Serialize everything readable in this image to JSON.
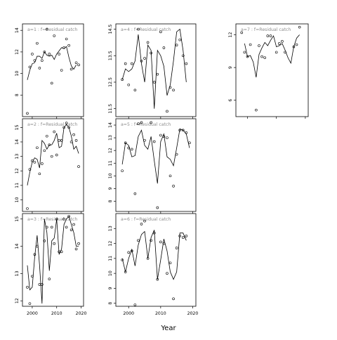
{
  "xlabel": "Year",
  "line_color": "#000000",
  "point_color": "#000000",
  "frame_color": "#000000",
  "title_color": "#8c8c8c",
  "panel_label_suffix": " : f=Residual catch",
  "x_ticks": [
    2000,
    2010,
    2020
  ],
  "xlim": [
    1996,
    2021
  ],
  "chart_data": [
    {
      "type": "line",
      "title": "a=1 : f=Residual catch",
      "ylim": [
        6.0,
        14.6
      ],
      "y_ticks": [
        8,
        10,
        12,
        14
      ],
      "x": [
        1998,
        1999,
        2000,
        2001,
        2002,
        2003,
        2004,
        2005,
        2006,
        2007,
        2008,
        2009,
        2010,
        2011,
        2012,
        2013,
        2014,
        2015,
        2016,
        2017,
        2018,
        2019
      ],
      "obs": [
        6.3,
        10.6,
        11.8,
        11.2,
        12.8,
        10.5,
        11.2,
        12.0,
        14.1,
        11.8,
        9.1,
        13.5,
        null,
        11.8,
        10.3,
        12.4,
        13.2,
        12.6,
        10.4,
        null,
        11.0,
        10.8
      ],
      "fit": [
        9.4,
        10.3,
        10.9,
        11.0,
        11.6,
        11.6,
        11.4,
        12.0,
        11.7,
        11.6,
        11.7,
        11.3,
        11.8,
        12.1,
        12.4,
        12.3,
        12.5,
        11.5,
        10.7,
        10.4,
        10.8,
        null
      ]
    },
    {
      "type": "line",
      "title": "a=4 : f=Residual catch",
      "ylim": [
        11.2,
        14.7
      ],
      "y_ticks": [
        11.5,
        12.5,
        13.5,
        14.5
      ],
      "x": [
        1998,
        1999,
        2000,
        2001,
        2002,
        2003,
        2004,
        2005,
        2006,
        2007,
        2008,
        2009,
        2010,
        2011,
        2012,
        2013,
        2014,
        2015,
        2016,
        2017,
        2018
      ],
      "obs": [
        12.6,
        13.2,
        12.4,
        13.2,
        12.2,
        14.5,
        13.3,
        13.4,
        14.0,
        13.6,
        12.5,
        12.8,
        14.4,
        13.8,
        11.4,
        12.3,
        12.2,
        13.9,
        14.1,
        13.5,
        13.2
      ],
      "fit": [
        12.6,
        13.0,
        12.9,
        13.0,
        13.3,
        14.3,
        13.2,
        12.5,
        13.9,
        13.7,
        11.5,
        13.7,
        13.5,
        13.1,
        12.0,
        12.4,
        13.3,
        14.4,
        14.5,
        13.7,
        12.5
      ]
    },
    {
      "type": "line",
      "title": "a=7 : f=Residual catch",
      "ylim": [
        4.5,
        13.0
      ],
      "y_ticks": [
        6,
        9,
        12
      ],
      "x": [
        1998,
        1999,
        2000,
        2001,
        2002,
        2003,
        2004,
        2005,
        2006,
        2007,
        2008,
        2009,
        2010,
        2011,
        2012,
        2013,
        2014,
        2015,
        2016,
        2017,
        2018,
        2019
      ],
      "obs": [
        12.2,
        10.4,
        10.0,
        11.1,
        null,
        5.1,
        11.0,
        10.0,
        9.9,
        11.9,
        11.9,
        null,
        10.4,
        11.2,
        11.4,
        10.4,
        null,
        null,
        10.9,
        11.1,
        12.7,
        null
      ],
      "fit": [
        null,
        11.2,
        10.0,
        10.1,
        9.5,
        8.1,
        10.2,
        10.8,
        11.3,
        11.0,
        11.5,
        11.9,
        10.9,
        11.0,
        11.2,
        10.6,
        9.9,
        9.4,
        10.9,
        11.7,
        12.0,
        null
      ]
    },
    {
      "type": "line",
      "title": "a=2 : f=Residual catch",
      "ylim": [
        9.2,
        15.6
      ],
      "y_ticks": [
        10,
        11,
        12,
        13,
        14,
        15
      ],
      "x": [
        1998,
        1999,
        2000,
        2001,
        2002,
        2003,
        2004,
        2005,
        2006,
        2007,
        2008,
        2009,
        2010,
        2011,
        2012,
        2013,
        2014,
        2015,
        2016,
        2017,
        2018,
        2019
      ],
      "obs": [
        9.4,
        12.1,
        12.7,
        12.6,
        13.6,
        11.8,
        12.5,
        13.4,
        14.4,
        13.8,
        13.0,
        14.7,
        13.1,
        14.1,
        14.1,
        15.0,
        15.3,
        15.0,
        14.0,
        14.5,
        14.1,
        12.3
      ],
      "fit": [
        11.0,
        11.9,
        12.6,
        12.9,
        12.8,
        12.2,
        14.1,
        13.9,
        13.5,
        13.8,
        13.8,
        14.1,
        14.6,
        13.6,
        13.7,
        15.0,
        15.2,
        15.0,
        14.4,
        13.5,
        13.7,
        13.2
      ]
    },
    {
      "type": "line",
      "title": "a=5 : f=Residual catch",
      "ylim": [
        7.2,
        14.5
      ],
      "y_ticks": [
        8,
        9,
        10,
        11,
        12,
        13,
        14
      ],
      "x": [
        1998,
        1999,
        2000,
        2001,
        2002,
        2003,
        2004,
        2005,
        2006,
        2007,
        2008,
        2009,
        2010,
        2011,
        2012,
        2013,
        2014,
        2015,
        2016,
        2017,
        2018,
        2019
      ],
      "obs": [
        10.4,
        12.6,
        12.2,
        12.1,
        8.6,
        14.1,
        14.2,
        12.8,
        null,
        14.2,
        12.7,
        7.5,
        13.2,
        13.1,
        13.0,
        10.0,
        9.2,
        11.7,
        13.6,
        13.6,
        13.4,
        12.6
      ],
      "fit": [
        10.9,
        12.6,
        12.4,
        11.5,
        11.6,
        13.1,
        13.6,
        12.4,
        12.1,
        13.1,
        11.2,
        9.4,
        12.7,
        13.3,
        11.5,
        11.3,
        10.8,
        12.2,
        13.7,
        13.6,
        13.3,
        12.2
      ]
    },
    {
      "type": "line",
      "title": "a=3 : f=Residual catch",
      "ylim": [
        11.8,
        15.2
      ],
      "y_ticks": [
        12.0,
        13.0,
        14.0,
        15.0
      ],
      "x": [
        1998,
        1999,
        2000,
        2001,
        2002,
        2003,
        2004,
        2005,
        2006,
        2007,
        2008,
        2009,
        2010,
        2011,
        2012,
        2013,
        2014,
        2015,
        2016,
        2017,
        2018,
        2019
      ],
      "obs": [
        12.5,
        11.9,
        12.9,
        13.7,
        14.0,
        12.6,
        12.6,
        14.2,
        14.7,
        12.8,
        14.7,
        14.1,
        15.0,
        13.8,
        13.8,
        15.0,
        14.7,
        15.1,
        14.6,
        14.8,
        13.9,
        14.1
      ],
      "fit": [
        13.3,
        12.4,
        12.5,
        13.6,
        14.4,
        13.3,
        11.9,
        15.0,
        14.5,
        13.1,
        14.2,
        14.3,
        15.0,
        13.7,
        13.9,
        14.8,
        15.0,
        15.1,
        14.8,
        14.5,
        14.0,
        14.0
      ]
    },
    {
      "type": "line",
      "title": "a=6 : f=Residual catch",
      "ylim": [
        7.8,
        14.0
      ],
      "y_ticks": [
        8,
        9,
        10,
        11,
        12,
        13
      ],
      "x": [
        1998,
        1999,
        2000,
        2001,
        2002,
        2003,
        2004,
        2005,
        2006,
        2007,
        2008,
        2009,
        2010,
        2011,
        2012,
        2013,
        2014,
        2015,
        2016,
        2017,
        2018,
        2019
      ],
      "obs": [
        10.9,
        10.1,
        11.4,
        11.5,
        7.9,
        12.2,
        13.3,
        13.5,
        11.0,
        12.2,
        12.7,
        9.6,
        12.1,
        12.0,
        10.0,
        10.7,
        8.3,
        11.7,
        12.5,
        12.4,
        12.5,
        null
      ],
      "fit": [
        11.0,
        10.1,
        11.0,
        11.6,
        10.5,
        11.9,
        12.6,
        12.8,
        11.0,
        12.4,
        12.9,
        9.6,
        10.9,
        12.3,
        11.5,
        10.1,
        9.6,
        10.1,
        12.7,
        12.7,
        12.2,
        null
      ]
    }
  ]
}
